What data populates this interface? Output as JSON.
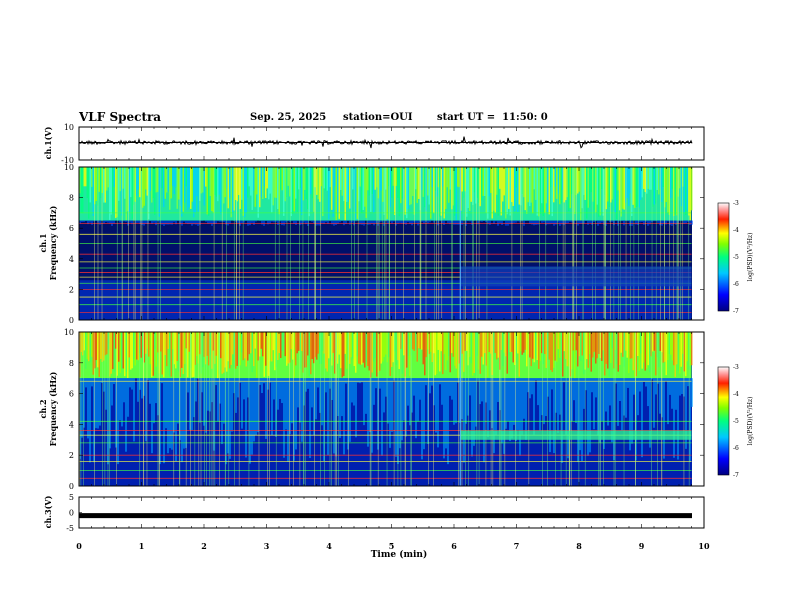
{
  "header": {
    "title": "VLF Spectra",
    "date": "Sep. 25, 2025",
    "station": "station=OUI",
    "start": "start UT =  11:50: 0"
  },
  "chart_data": [
    {
      "type": "line",
      "name": "ch1-waveform",
      "ylabel": "ch.1(V)",
      "ylim": [
        -10,
        10
      ],
      "yticks": [
        "10",
        "-10"
      ],
      "baseline": 0,
      "xlim": [
        0,
        10
      ]
    },
    {
      "type": "heatmap",
      "name": "ch1-spectrogram",
      "ylabel": "ch.1\nFrequency (kHz)",
      "ylabel_lines": [
        "ch.1",
        "Frequency (kHz)"
      ],
      "ylim": [
        0,
        10
      ],
      "yticks": [
        "0",
        "2",
        "4",
        "6",
        "8",
        "10"
      ],
      "xlim": [
        0,
        9.8
      ],
      "colorbar": {
        "label": "log(PSD)(V²/Hz)",
        "range": [
          -7,
          -3
        ],
        "ticks": [
          "-3",
          "-4",
          "-5",
          "-6",
          "-7"
        ]
      },
      "features": {
        "high_band_kHz": [
          6.5,
          10
        ],
        "lines_kHz": [
          0.5,
          1.0,
          1.5,
          2.0,
          2.4,
          2.8,
          3.1,
          3.4,
          3.8,
          4.3,
          5.0,
          5.6,
          6.3,
          7.0
        ],
        "change_at_min": 6.1
      }
    },
    {
      "type": "heatmap",
      "name": "ch2-spectrogram",
      "ylabel": "ch.2\nFrequency (kHz)",
      "ylabel_lines": [
        "ch.2",
        "Frequency (kHz)"
      ],
      "ylim": [
        0,
        10
      ],
      "yticks": [
        "0",
        "2",
        "4",
        "6",
        "8",
        "10"
      ],
      "xlim": [
        0,
        9.8
      ],
      "colorbar": {
        "label": "log(PSD)(V²/Hz)",
        "range": [
          -7,
          -3
        ],
        "ticks": [
          "-3",
          "-4",
          "-5",
          "-6",
          "-7"
        ]
      },
      "features": {
        "high_band_kHz": [
          7.0,
          10
        ],
        "lines_kHz": [
          0.5,
          1.0,
          1.6,
          2.0,
          2.8,
          3.3,
          3.6,
          4.2,
          6.8
        ],
        "band_after_change_kHz": [
          3.0,
          3.6
        ],
        "change_at_min": 6.1
      }
    },
    {
      "type": "line",
      "name": "ch3-waveform",
      "ylabel": "ch.3(V)",
      "ylim": [
        -5,
        5
      ],
      "yticks": [
        "5",
        "0",
        "-5"
      ],
      "baseline": -1,
      "xlim": [
        0,
        10
      ]
    }
  ],
  "xaxis": {
    "label": "Time (min)",
    "ticks": [
      "0",
      "1",
      "2",
      "3",
      "4",
      "5",
      "6",
      "7",
      "8",
      "9",
      "10"
    ],
    "range": [
      0,
      10
    ]
  }
}
